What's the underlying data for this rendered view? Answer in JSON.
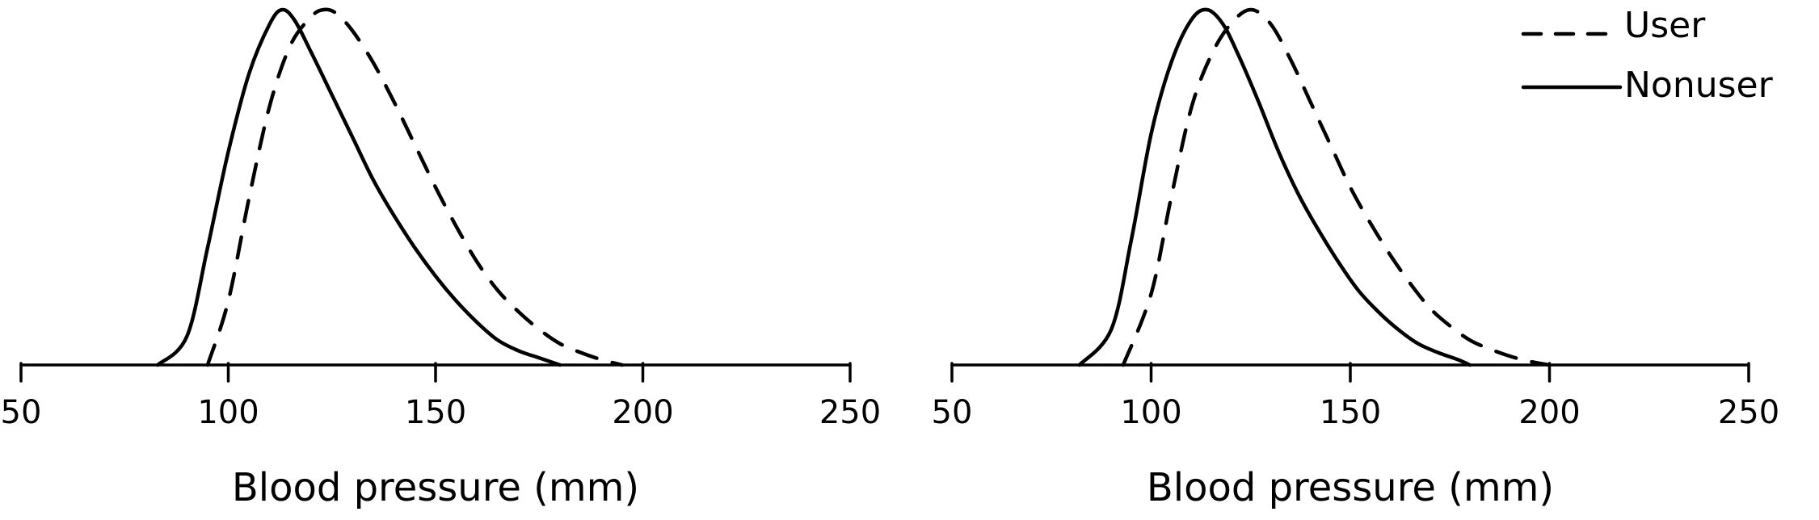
{
  "chart_data": [
    {
      "type": "line",
      "xlabel": "Blood pressure (mm)",
      "ylabel": "",
      "xlim": [
        50,
        250
      ],
      "xticks": [
        "50",
        "100",
        "150",
        "200",
        "250"
      ],
      "y_axis_shown": false,
      "grid": false,
      "legend": null,
      "series": [
        {
          "name": "Nonuser",
          "style": "solid",
          "x": [
            83,
            90,
            95,
            100,
            105,
            110,
            113,
            116,
            120,
            125,
            130,
            135,
            140,
            145,
            150,
            155,
            160,
            165,
            170,
            175,
            180
          ],
          "y": [
            0,
            0.08,
            0.33,
            0.6,
            0.82,
            0.96,
            1.0,
            0.97,
            0.88,
            0.76,
            0.64,
            0.52,
            0.42,
            0.33,
            0.25,
            0.18,
            0.12,
            0.07,
            0.04,
            0.02,
            0.0
          ]
        },
        {
          "name": "User",
          "style": "dashed",
          "x": [
            95,
            100,
            105,
            110,
            115,
            120,
            123,
            126,
            130,
            135,
            140,
            145,
            150,
            155,
            160,
            165,
            170,
            175,
            180,
            185,
            190,
            195
          ],
          "y": [
            0,
            0.18,
            0.47,
            0.73,
            0.9,
            0.98,
            1.0,
            0.99,
            0.94,
            0.85,
            0.74,
            0.62,
            0.5,
            0.39,
            0.29,
            0.21,
            0.15,
            0.1,
            0.06,
            0.035,
            0.015,
            0.0
          ]
        }
      ]
    },
    {
      "type": "line",
      "xlabel": "Blood pressure (mm)",
      "ylabel": "",
      "xlim": [
        50,
        250
      ],
      "xticks": [
        "50",
        "100",
        "150",
        "200",
        "250"
      ],
      "y_axis_shown": false,
      "grid": false,
      "legend": "top-right",
      "series": [
        {
          "name": "Nonuser",
          "style": "solid",
          "x": [
            82,
            90,
            95,
            100,
            105,
            110,
            114,
            118,
            122,
            127,
            132,
            137,
            142,
            147,
            152,
            157,
            162,
            167,
            172,
            177,
            180
          ],
          "y": [
            0,
            0.1,
            0.35,
            0.65,
            0.85,
            0.97,
            1.0,
            0.96,
            0.87,
            0.74,
            0.6,
            0.48,
            0.38,
            0.29,
            0.21,
            0.15,
            0.1,
            0.06,
            0.035,
            0.015,
            0.0
          ]
        },
        {
          "name": "User",
          "style": "dashed",
          "x": [
            93,
            100,
            105,
            110,
            115,
            120,
            125,
            130,
            135,
            140,
            145,
            150,
            155,
            160,
            165,
            170,
            175,
            180,
            185,
            190,
            195,
            200
          ],
          "y": [
            0,
            0.2,
            0.47,
            0.72,
            0.87,
            0.96,
            1.0,
            0.96,
            0.86,
            0.74,
            0.62,
            0.5,
            0.4,
            0.31,
            0.23,
            0.16,
            0.11,
            0.07,
            0.045,
            0.025,
            0.01,
            0.0
          ]
        }
      ]
    }
  ]
}
